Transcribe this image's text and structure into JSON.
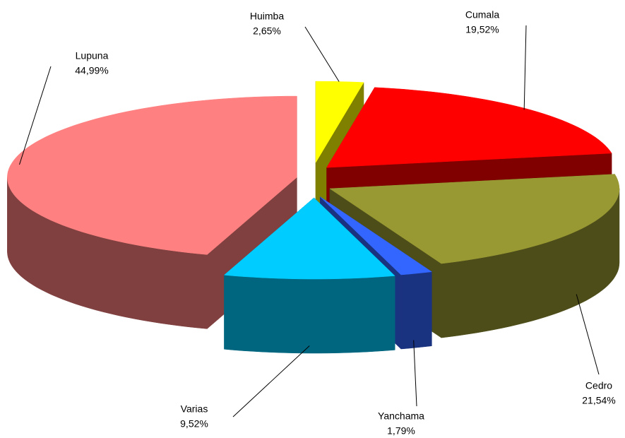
{
  "chart_data": {
    "type": "pie3d",
    "categories": [
      "Huimba",
      "Cumala",
      "Cedro",
      "Yanchama",
      "Varias",
      "Lupuna"
    ],
    "values": [
      2.65,
      19.52,
      21.54,
      1.79,
      9.52,
      44.99
    ],
    "value_labels": [
      "2,65%",
      "19,52%",
      "21,54%",
      "1,79%",
      "9,52%",
      "44,99%"
    ],
    "colors": [
      "#ffff00",
      "#ff0000",
      "#999933",
      "#3366ff",
      "#00ccff",
      "#ff8080"
    ]
  }
}
